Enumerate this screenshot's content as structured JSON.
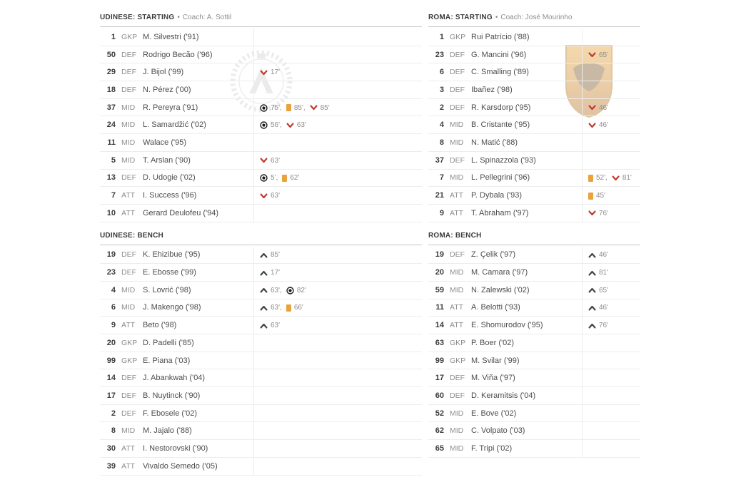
{
  "bullet": "•",
  "colors": {
    "sub_off": "#c0392b",
    "sub_on": "#3d464c",
    "yellow_card": "#eba23c",
    "goal": "#1c1c1c",
    "minute_text": "#8d8d8d"
  },
  "icons": {
    "goal": "goal-icon",
    "yellow-card": "yellow-card-icon",
    "sub-off": "sub-off-icon",
    "sub-on": "sub-on-icon"
  },
  "teams": [
    {
      "id": "udinese",
      "starting": {
        "title": "UDINESE: STARTING",
        "coach": "Coach: A. Sottil",
        "players": [
          {
            "num": "1",
            "pos": "GKP",
            "name": "M. Silvestri ('91)",
            "events": []
          },
          {
            "num": "50",
            "pos": "DEF",
            "name": "Rodrigo Becão ('96)",
            "events": []
          },
          {
            "num": "29",
            "pos": "DEF",
            "name": "J. Bijol ('99)",
            "events": [
              {
                "icon": "sub-off",
                "minute": "17'"
              }
            ]
          },
          {
            "num": "18",
            "pos": "DEF",
            "name": "N. Pérez ('00)",
            "events": []
          },
          {
            "num": "37",
            "pos": "MID",
            "name": "R. Pereyra ('91)",
            "events": [
              {
                "icon": "goal",
                "minute": "75'"
              },
              {
                "icon": "yellow-card",
                "minute": "85'"
              },
              {
                "icon": "sub-off",
                "minute": "85'"
              }
            ]
          },
          {
            "num": "24",
            "pos": "MID",
            "name": "L. Samardžić ('02)",
            "events": [
              {
                "icon": "goal",
                "minute": "56'"
              },
              {
                "icon": "sub-off",
                "minute": "63'"
              }
            ]
          },
          {
            "num": "11",
            "pos": "MID",
            "name": "Walace ('95)",
            "events": []
          },
          {
            "num": "5",
            "pos": "MID",
            "name": "T. Arslan ('90)",
            "events": [
              {
                "icon": "sub-off",
                "minute": "63'"
              }
            ]
          },
          {
            "num": "13",
            "pos": "DEF",
            "name": "D. Udogie ('02)",
            "events": [
              {
                "icon": "goal",
                "minute": "5'"
              },
              {
                "icon": "yellow-card",
                "minute": "62'"
              }
            ]
          },
          {
            "num": "7",
            "pos": "ATT",
            "name": "I. Success ('96)",
            "events": [
              {
                "icon": "sub-off",
                "minute": "63'"
              }
            ]
          },
          {
            "num": "10",
            "pos": "ATT",
            "name": "Gerard Deulofeu ('94)",
            "events": []
          }
        ]
      },
      "bench": {
        "title": "UDINESE: BENCH",
        "players": [
          {
            "num": "19",
            "pos": "DEF",
            "name": "K. Ehizibue ('95)",
            "events": [
              {
                "icon": "sub-on",
                "minute": "85'"
              }
            ]
          },
          {
            "num": "23",
            "pos": "DEF",
            "name": "E. Ebosse ('99)",
            "events": [
              {
                "icon": "sub-on",
                "minute": "17'"
              }
            ]
          },
          {
            "num": "4",
            "pos": "MID",
            "name": "S. Lovrić ('98)",
            "events": [
              {
                "icon": "sub-on",
                "minute": "63'"
              },
              {
                "icon": "goal",
                "minute": "82'"
              }
            ]
          },
          {
            "num": "6",
            "pos": "MID",
            "name": "J. Makengo ('98)",
            "events": [
              {
                "icon": "sub-on",
                "minute": "63'"
              },
              {
                "icon": "yellow-card",
                "minute": "66'"
              }
            ]
          },
          {
            "num": "9",
            "pos": "ATT",
            "name": "Beto ('98)",
            "events": [
              {
                "icon": "sub-on",
                "minute": "63'"
              }
            ]
          },
          {
            "num": "20",
            "pos": "GKP",
            "name": "D. Padelli ('85)",
            "events": []
          },
          {
            "num": "99",
            "pos": "GKP",
            "name": "E. Piana ('03)",
            "events": []
          },
          {
            "num": "14",
            "pos": "DEF",
            "name": "J. Abankwah ('04)",
            "events": []
          },
          {
            "num": "17",
            "pos": "DEF",
            "name": "B. Nuytinck ('90)",
            "events": []
          },
          {
            "num": "2",
            "pos": "DEF",
            "name": "F. Ebosele ('02)",
            "events": []
          },
          {
            "num": "8",
            "pos": "MID",
            "name": "M. Jajalo ('88)",
            "events": []
          },
          {
            "num": "30",
            "pos": "ATT",
            "name": "I. Nestorovski ('90)",
            "events": []
          },
          {
            "num": "39",
            "pos": "ATT",
            "name": "Vivaldo Semedo ('05)",
            "events": []
          }
        ]
      }
    },
    {
      "id": "roma",
      "starting": {
        "title": "ROMA: STARTING",
        "coach": "Coach: José Mourinho",
        "players": [
          {
            "num": "1",
            "pos": "GKP",
            "name": "Rui Patrício ('88)",
            "events": []
          },
          {
            "num": "23",
            "pos": "DEF",
            "name": "G. Mancini ('96)",
            "events": [
              {
                "icon": "sub-off",
                "minute": "65'"
              }
            ]
          },
          {
            "num": "6",
            "pos": "DEF",
            "name": "C. Smalling ('89)",
            "events": []
          },
          {
            "num": "3",
            "pos": "DEF",
            "name": "Ibañez ('98)",
            "events": []
          },
          {
            "num": "2",
            "pos": "DEF",
            "name": "R. Karsdorp ('95)",
            "events": [
              {
                "icon": "sub-off",
                "minute": "46'"
              }
            ]
          },
          {
            "num": "4",
            "pos": "MID",
            "name": "B. Cristante ('95)",
            "events": [
              {
                "icon": "sub-off",
                "minute": "46'"
              }
            ]
          },
          {
            "num": "8",
            "pos": "MID",
            "name": "N. Matić ('88)",
            "events": []
          },
          {
            "num": "37",
            "pos": "DEF",
            "name": "L. Spinazzola ('93)",
            "events": []
          },
          {
            "num": "7",
            "pos": "MID",
            "name": "L. Pellegrini ('96)",
            "events": [
              {
                "icon": "yellow-card",
                "minute": "52'"
              },
              {
                "icon": "sub-off",
                "minute": "81'"
              }
            ]
          },
          {
            "num": "21",
            "pos": "ATT",
            "name": "P. Dybala ('93)",
            "events": [
              {
                "icon": "yellow-card",
                "minute": "45'"
              }
            ]
          },
          {
            "num": "9",
            "pos": "ATT",
            "name": "T. Abraham ('97)",
            "events": [
              {
                "icon": "sub-off",
                "minute": "76'"
              }
            ]
          }
        ]
      },
      "bench": {
        "title": "ROMA: BENCH",
        "players": [
          {
            "num": "19",
            "pos": "DEF",
            "name": "Z. Çelik ('97)",
            "events": [
              {
                "icon": "sub-on",
                "minute": "46'"
              }
            ]
          },
          {
            "num": "20",
            "pos": "MID",
            "name": "M. Camara ('97)",
            "events": [
              {
                "icon": "sub-on",
                "minute": "81'"
              }
            ]
          },
          {
            "num": "59",
            "pos": "MID",
            "name": "N. Zalewski ('02)",
            "events": [
              {
                "icon": "sub-on",
                "minute": "65'"
              }
            ]
          },
          {
            "num": "11",
            "pos": "ATT",
            "name": "A. Belotti ('93)",
            "events": [
              {
                "icon": "sub-on",
                "minute": "46'"
              }
            ]
          },
          {
            "num": "14",
            "pos": "ATT",
            "name": "E. Shomurodov ('95)",
            "events": [
              {
                "icon": "sub-on",
                "minute": "76'"
              }
            ]
          },
          {
            "num": "63",
            "pos": "GKP",
            "name": "P. Boer ('02)",
            "events": []
          },
          {
            "num": "99",
            "pos": "GKP",
            "name": "M. Svilar ('99)",
            "events": []
          },
          {
            "num": "17",
            "pos": "DEF",
            "name": "M. Viña ('97)",
            "events": []
          },
          {
            "num": "60",
            "pos": "DEF",
            "name": "D. Keramitsis ('04)",
            "events": []
          },
          {
            "num": "52",
            "pos": "MID",
            "name": "E. Bove ('02)",
            "events": []
          },
          {
            "num": "62",
            "pos": "MID",
            "name": "C. Volpato ('03)",
            "events": []
          },
          {
            "num": "65",
            "pos": "MID",
            "name": "F. Tripi ('02)",
            "events": []
          }
        ]
      }
    }
  ]
}
